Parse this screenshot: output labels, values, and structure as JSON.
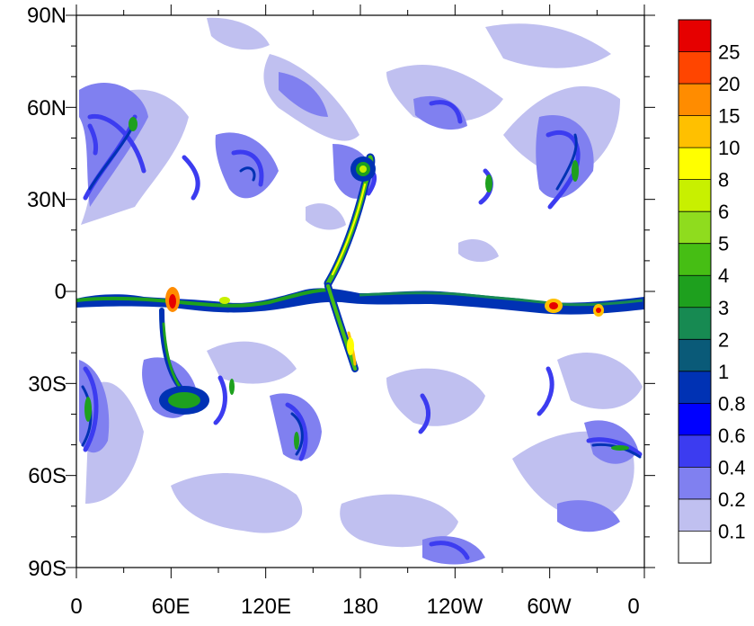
{
  "map": {
    "lat_labels": [
      "90N",
      "60N",
      "30N",
      "0",
      "30S",
      "60S",
      "90S"
    ],
    "lon_labels": [
      "0",
      "60E",
      "120E",
      "180",
      "120W",
      "60W",
      "0"
    ]
  },
  "colorbar": {
    "labels": [
      "25",
      "20",
      "15",
      "10",
      "8",
      "6",
      "5",
      "4",
      "3",
      "2",
      "1",
      "0.8",
      "0.6",
      "0.4",
      "0.2",
      "0.1"
    ],
    "colors": [
      "#e60000",
      "#ff4500",
      "#ff8c00",
      "#ffc000",
      "#ffff00",
      "#c8f000",
      "#8fdc1e",
      "#46be14",
      "#1ea01e",
      "#178a52",
      "#0a5a78",
      "#0032b4",
      "#0000ff",
      "#3c3cf0",
      "#8080f0",
      "#c0c0f0",
      "#ffffff"
    ]
  }
}
